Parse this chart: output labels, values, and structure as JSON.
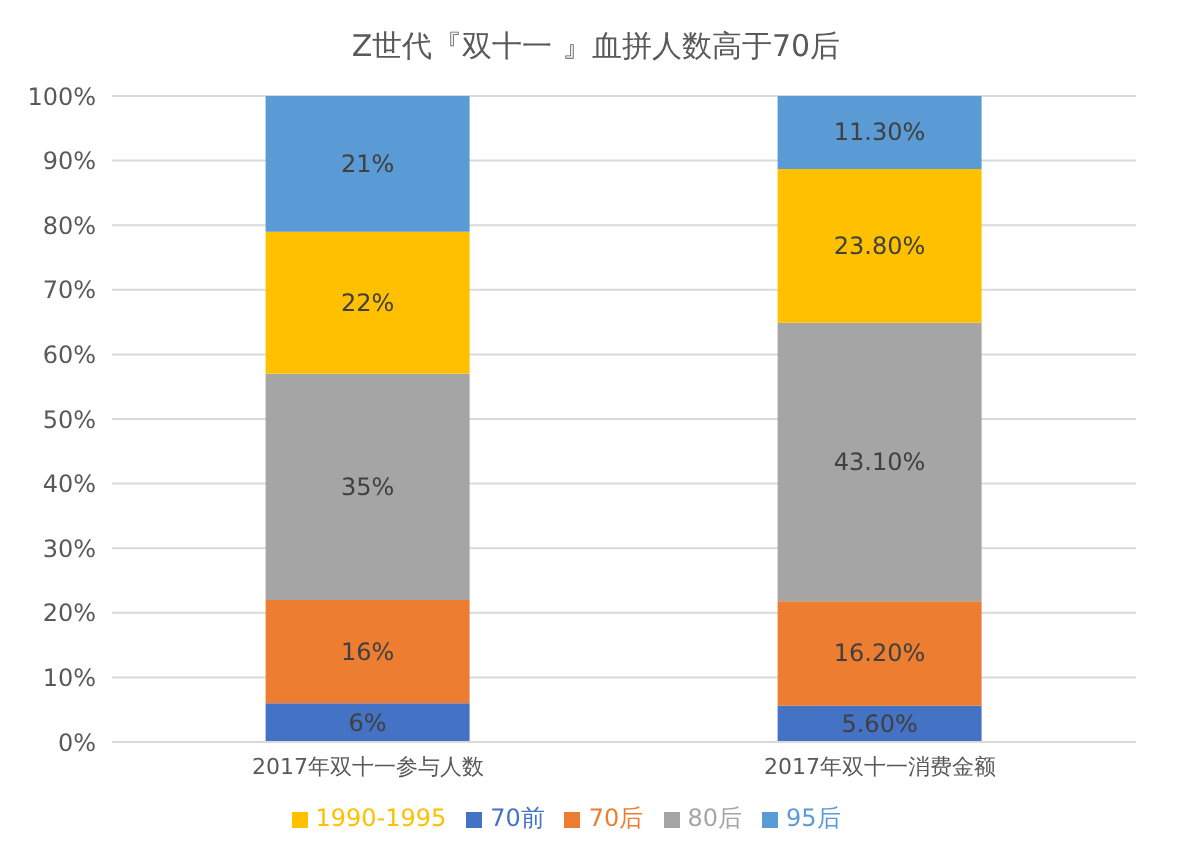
{
  "chart_data": {
    "type": "bar",
    "stacked": true,
    "title": "Z世代『双十一 』血拼人数高于70后",
    "categories": [
      "2017年双十一参与人数",
      "2017年双十一消费金额"
    ],
    "series": [
      {
        "name": "70前",
        "color": "#4472c4",
        "values": [
          6,
          5.6
        ],
        "value_labels": [
          "6%",
          "5.60%"
        ]
      },
      {
        "name": "70后",
        "color": "#ed7d31",
        "values": [
          16,
          16.2
        ],
        "value_labels": [
          "16%",
          "16.20%"
        ]
      },
      {
        "name": "80后",
        "color": "#a5a5a5",
        "values": [
          35,
          43.1
        ],
        "value_labels": [
          "35%",
          "43.10%"
        ]
      },
      {
        "name": "1990-1995",
        "color": "#ffc000",
        "values": [
          22,
          23.8
        ],
        "value_labels": [
          "22%",
          "23.80%"
        ]
      },
      {
        "name": "95后",
        "color": "#5b9bd5",
        "values": [
          21,
          11.3
        ],
        "value_labels": [
          "21%",
          "11.30%"
        ]
      }
    ],
    "ylim": [
      0,
      100
    ],
    "yticks": [
      {
        "value": 0,
        "label": "0%"
      },
      {
        "value": 10,
        "label": "10%"
      },
      {
        "value": 20,
        "label": "20%"
      },
      {
        "value": 30,
        "label": "30%"
      },
      {
        "value": 40,
        "label": "40%"
      },
      {
        "value": 50,
        "label": "50%"
      },
      {
        "value": 60,
        "label": "60%"
      },
      {
        "value": 70,
        "label": "70%"
      },
      {
        "value": 80,
        "label": "80%"
      },
      {
        "value": 90,
        "label": "90%"
      },
      {
        "value": 100,
        "label": "100%"
      }
    ],
    "grid": "y",
    "legend": "bottom"
  }
}
